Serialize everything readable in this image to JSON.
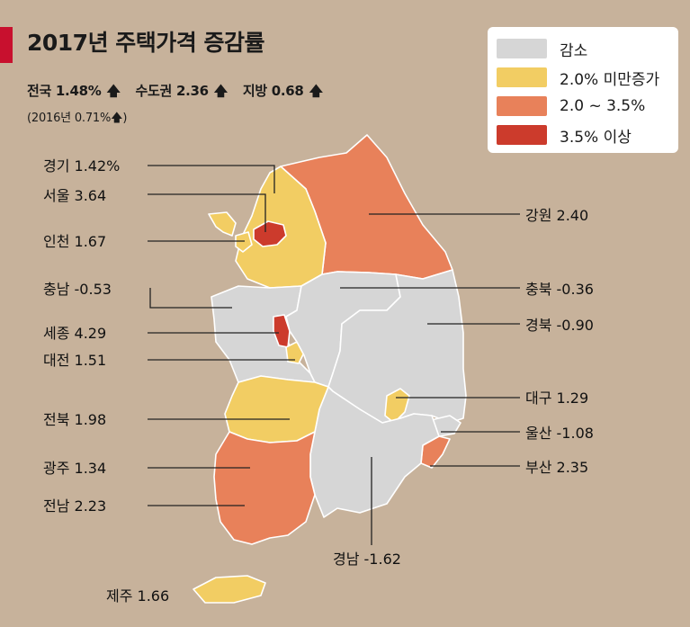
{
  "title": "2017년 주택가격 증감률",
  "summary": {
    "national": "전국 1.48%",
    "capital": "수도권 2.36",
    "local": "지방 0.68"
  },
  "prior_year": "(2016년 0.71%",
  "up_arrow": "🡅",
  "legend": [
    {
      "label": "감소",
      "color": "#d6d6d6"
    },
    {
      "label": "2.0% 미만증가",
      "color": "#f2cd63"
    },
    {
      "label": "2.0 ~ 3.5%",
      "color": "#e8815a"
    },
    {
      "label": "3.5% 이상",
      "color": "#cc3b2c"
    }
  ],
  "regions": [
    {
      "name": "경기",
      "text": "경기 1.42%",
      "value": 1.42,
      "color": "#f2cd63"
    },
    {
      "name": "서울",
      "text": "서울 3.64",
      "value": 3.64,
      "color": "#cc3b2c"
    },
    {
      "name": "인천",
      "text": "인천 1.67",
      "value": 1.67,
      "color": "#f2cd63"
    },
    {
      "name": "충남",
      "text": "충남 -0.53",
      "value": -0.53,
      "color": "#d6d6d6"
    },
    {
      "name": "세종",
      "text": "세종 4.29",
      "value": 4.29,
      "color": "#cc3b2c"
    },
    {
      "name": "대전",
      "text": "대전 1.51",
      "value": 1.51,
      "color": "#f2cd63"
    },
    {
      "name": "전북",
      "text": "전북 1.98",
      "value": 1.98,
      "color": "#f2cd63"
    },
    {
      "name": "광주",
      "text": "광주 1.34",
      "value": 1.34,
      "color": "#f2cd63"
    },
    {
      "name": "전남",
      "text": "전남 2.23",
      "value": 2.23,
      "color": "#e8815a"
    },
    {
      "name": "제주",
      "text": "제주 1.66",
      "value": 1.66,
      "color": "#f2cd63"
    },
    {
      "name": "강원",
      "text": "강원 2.40",
      "value": 2.4,
      "color": "#e8815a"
    },
    {
      "name": "충북",
      "text": "충북 -0.36",
      "value": -0.36,
      "color": "#d6d6d6"
    },
    {
      "name": "경북",
      "text": "경북 -0.90",
      "value": -0.9,
      "color": "#d6d6d6"
    },
    {
      "name": "대구",
      "text": "대구 1.29",
      "value": 1.29,
      "color": "#f2cd63"
    },
    {
      "name": "울산",
      "text": "울산 -1.08",
      "value": -1.08,
      "color": "#d6d6d6"
    },
    {
      "name": "부산",
      "text": "부산 2.35",
      "value": 2.35,
      "color": "#e8815a"
    },
    {
      "name": "경남",
      "text": "경남 -1.62",
      "value": -1.62,
      "color": "#d6d6d6"
    }
  ]
}
